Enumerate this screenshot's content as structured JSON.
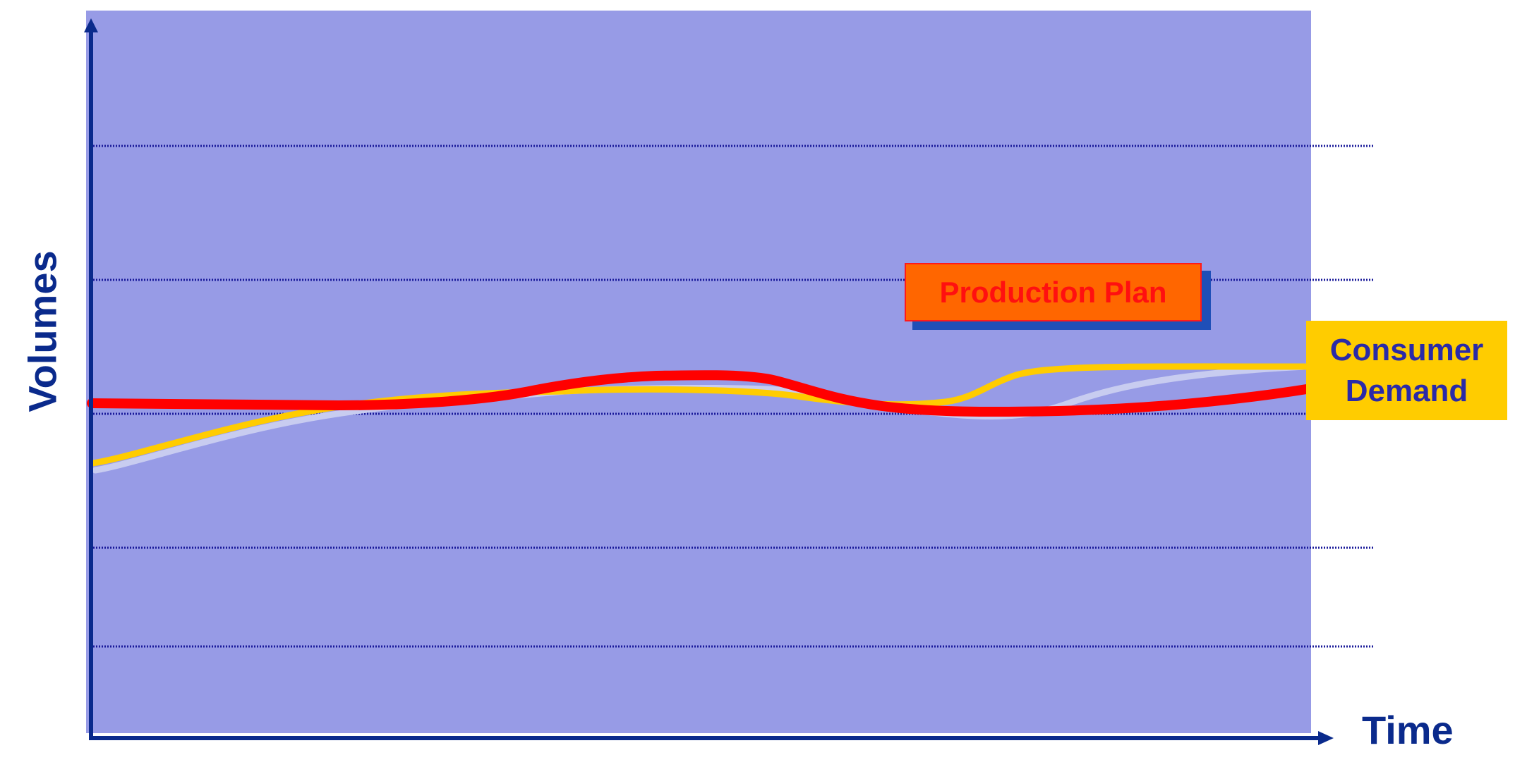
{
  "axes": {
    "y_label": "Volumes",
    "x_label": "Time"
  },
  "labels": {
    "production_plan": "Production Plan",
    "consumer_demand": "Consumer\nDemand"
  },
  "colors": {
    "plot_background": "#979be6",
    "axis": "#0a2a8c",
    "gridline": "#1a1a9a",
    "production_plan_line": "#ff0000",
    "consumer_demand_line": "#ffcc00",
    "consumer_demand_shadow": "#c8ccf0",
    "production_plan_box": "#ff6600",
    "consumer_demand_box": "#ffcc00"
  },
  "grid": {
    "style": "dotted",
    "count": 5
  }
}
